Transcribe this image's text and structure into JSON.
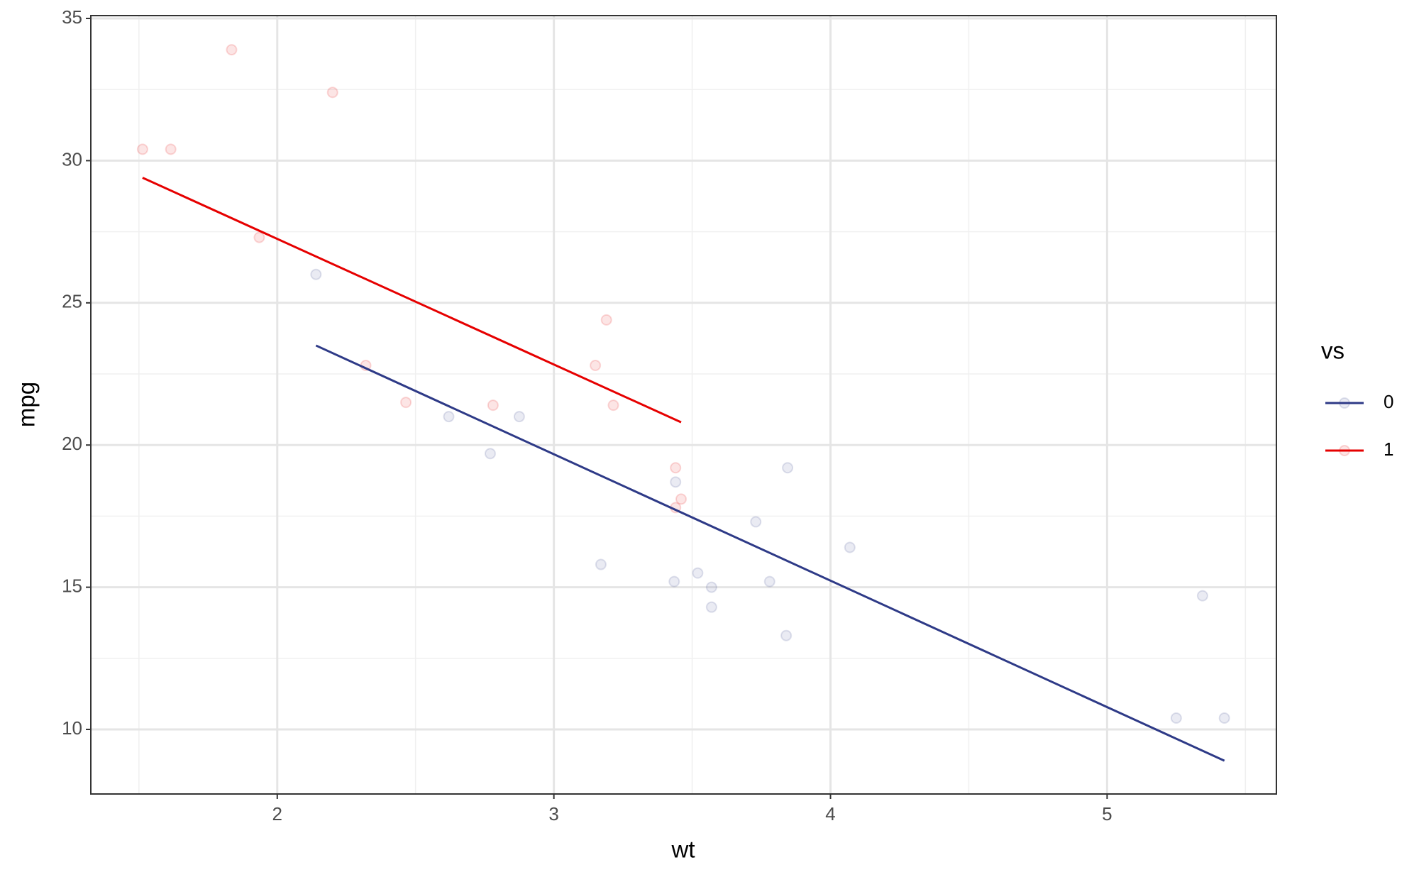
{
  "chart_data": {
    "type": "scatter",
    "x_label": "wt",
    "y_label": "mpg",
    "legend_title": "vs",
    "legend": "right",
    "grid": true,
    "xlim": [
      1.326,
      5.612
    ],
    "xticks": [
      2,
      3,
      4,
      5
    ],
    "ylim": [
      7.73,
      35.1
    ],
    "yticks": [
      10,
      15,
      20,
      25,
      30,
      35
    ],
    "series": [
      {
        "name": "0",
        "color": "#2e3a87",
        "x": [
          2.62,
          2.875,
          3.44,
          3.57,
          4.07,
          3.73,
          3.78,
          5.25,
          5.424,
          5.345,
          3.52,
          3.435,
          3.84,
          3.845,
          2.14,
          3.17,
          2.77,
          3.57
        ],
        "values": [
          21,
          21,
          18.7,
          14.3,
          16.4,
          17.3,
          15.2,
          10.4,
          10.4,
          14.7,
          15.5,
          15.2,
          13.3,
          19.2,
          26,
          15.8,
          19.7,
          15
        ],
        "fit_x": [
          2.14,
          5.424
        ],
        "fit_values": [
          23.5,
          8.9
        ]
      },
      {
        "name": "1",
        "color": "#e60000",
        "x": [
          2.32,
          3.215,
          3.46,
          3.19,
          3.15,
          3.44,
          3.44,
          2.2,
          1.615,
          1.835,
          2.465,
          1.935,
          1.513,
          2.78
        ],
        "values": [
          22.8,
          21.4,
          18.1,
          24.4,
          22.8,
          19.2,
          17.8,
          32.4,
          30.4,
          33.9,
          21.5,
          27.3,
          30.4,
          21.4
        ],
        "fit_x": [
          1.513,
          3.46
        ],
        "fit_values": [
          29.4,
          20.8
        ]
      }
    ]
  }
}
